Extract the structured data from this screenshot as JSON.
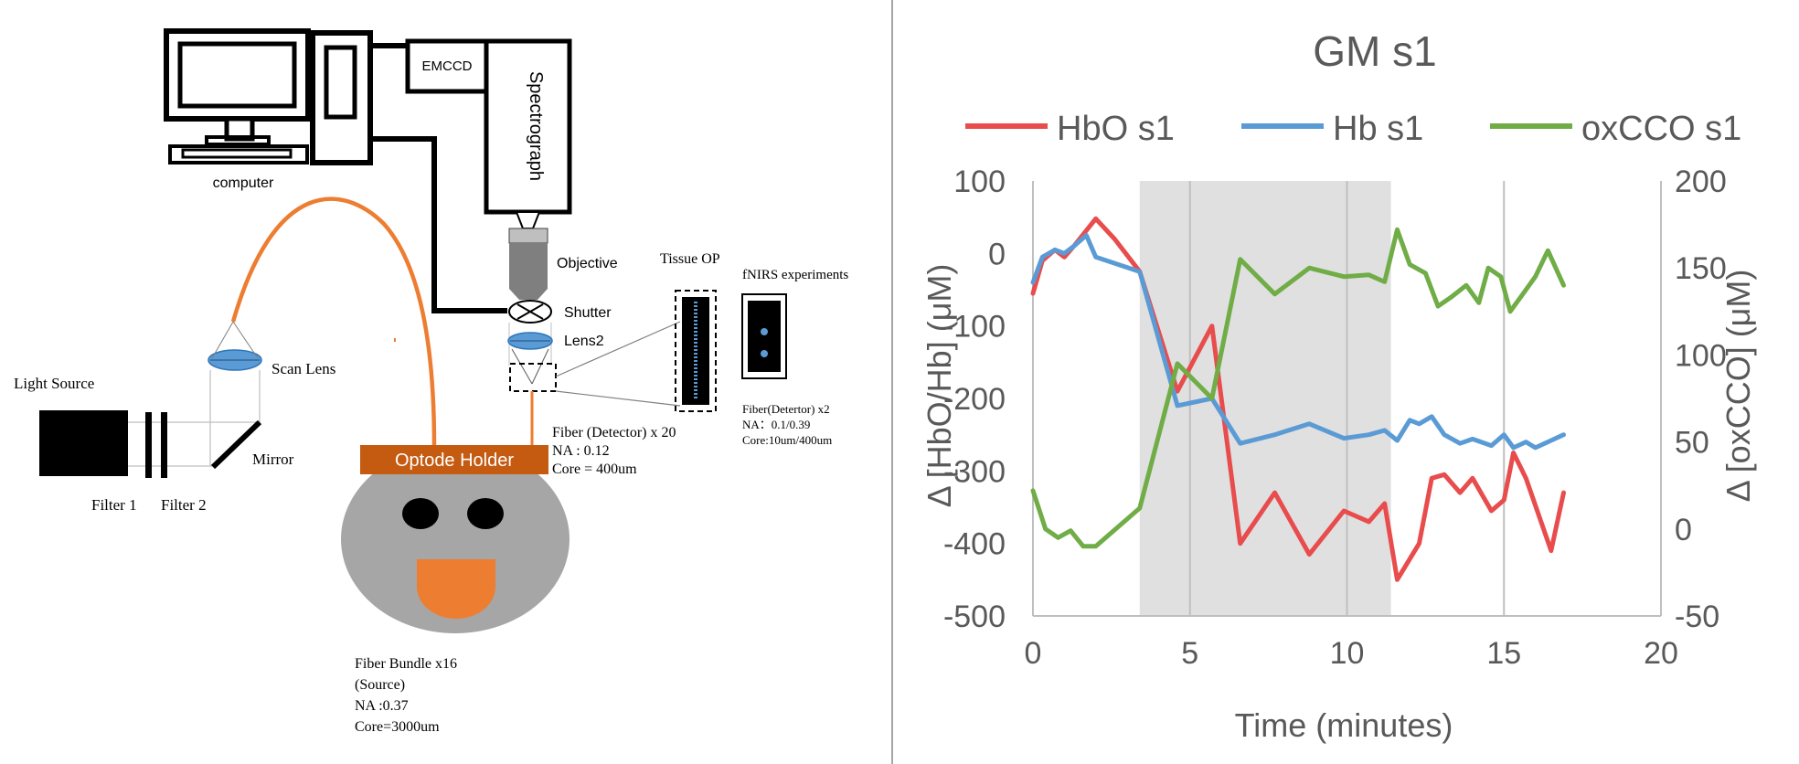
{
  "diagram": {
    "computer_label": "computer",
    "emccd_label": "EMCCD",
    "spectrograph_label": "Spectrograph",
    "objective_label": "Objective",
    "shutter_label": "Shutter",
    "lens2_label": "Lens2",
    "tissue_op_label": "Tissue OP",
    "fnirs_label": "fNIRS experiments",
    "scan_lens_label": "Scan Lens",
    "light_source_label": "Light Source",
    "mirror_label": "Mirror",
    "filter1_label": "Filter 1",
    "filter2_label": "Filter 2",
    "optode_holder_label": "Optode Holder",
    "fiber_detector_lines": [
      "Fiber (Detector) x 20",
      "NA : 0.12",
      "Core = 400um"
    ],
    "fiber_detector2_lines": [
      "Fiber(Detertor) x2",
      "NA：0.1/0.39",
      "Core:10um/400um"
    ],
    "fiber_bundle_lines": [
      "Fiber Bundle x16",
      "(Source)",
      "NA :0.37",
      "Core=3000um"
    ],
    "colors": {
      "orange": "#ed7d31",
      "lens_blue": "#5b9bd5",
      "holder_brown": "#c55a11",
      "head_gray": "#a6a6a6"
    }
  },
  "chart_data": {
    "type": "line",
    "title": "GM s1",
    "xlabel": "Time (minutes)",
    "ylabel_left": "Δ [HbO/Hb] (μM)",
    "ylabel_right": "Δ [oxCCO] (μM)",
    "xlim": [
      0,
      20
    ],
    "xticks": [
      0,
      5,
      10,
      15,
      20
    ],
    "ylim_left": [
      -500,
      100
    ],
    "yticks_left": [
      100,
      0,
      -100,
      -200,
      -300,
      -400,
      -500
    ],
    "ylim_right": [
      -50,
      200
    ],
    "yticks_right": [
      200,
      150,
      100,
      50,
      0,
      -50
    ],
    "shaded_interval": [
      3.4,
      11.4
    ],
    "legend_position": "top",
    "grid": "vertical",
    "series": [
      {
        "name": "HbO s1",
        "axis": "left",
        "color": "#e84c4c",
        "x": [
          0,
          0.3,
          0.7,
          1.0,
          1.3,
          2.0,
          2.6,
          3.4,
          4.6,
          5.7,
          6.6,
          7.7,
          8.8,
          9.9,
          10.7,
          11.2,
          11.6,
          12.3,
          12.7,
          13.1,
          13.6,
          14.0,
          14.6,
          15.0,
          15.3,
          15.7,
          16.5,
          16.9
        ],
        "y": [
          -55,
          -10,
          5,
          -5,
          10,
          48,
          20,
          -25,
          -190,
          -100,
          -400,
          -330,
          -415,
          -355,
          -370,
          -345,
          -450,
          -400,
          -310,
          -305,
          -330,
          -310,
          -355,
          -340,
          -275,
          -310,
          -410,
          -330
        ]
      },
      {
        "name": "Hb s1",
        "axis": "left",
        "color": "#5b9bd5",
        "x": [
          0,
          0.3,
          0.7,
          1.0,
          1.3,
          1.7,
          2.0,
          3.4,
          4.6,
          5.7,
          6.6,
          7.7,
          8.8,
          9.9,
          10.7,
          11.2,
          11.6,
          12.0,
          12.3,
          12.7,
          13.1,
          13.6,
          14.0,
          14.6,
          15.0,
          15.3,
          15.7,
          16.0,
          16.5,
          16.9
        ],
        "y": [
          -40,
          -5,
          5,
          0,
          10,
          25,
          -5,
          -25,
          -210,
          -200,
          -262,
          -250,
          -235,
          -255,
          -250,
          -244,
          -258,
          -230,
          -235,
          -225,
          -250,
          -262,
          -256,
          -265,
          -250,
          -268,
          -260,
          -268,
          -258,
          -250
        ]
      },
      {
        "name": "oxCCO s1",
        "axis": "right",
        "color": "#70ad47",
        "x": [
          0,
          0.4,
          0.8,
          1.2,
          1.6,
          2.0,
          3.4,
          4.6,
          5.7,
          6.6,
          7.7,
          8.8,
          9.9,
          10.7,
          11.2,
          11.6,
          12.0,
          12.5,
          12.9,
          13.3,
          13.8,
          14.2,
          14.5,
          14.9,
          15.2,
          15.6,
          16.0,
          16.4,
          16.9
        ],
        "y": [
          22,
          0,
          -5,
          -1,
          -10,
          -10,
          12,
          95,
          75,
          155,
          135,
          150,
          145,
          146,
          142,
          172,
          152,
          147,
          128,
          133,
          140,
          130,
          150,
          145,
          125,
          135,
          145,
          160,
          140
        ]
      }
    ]
  }
}
